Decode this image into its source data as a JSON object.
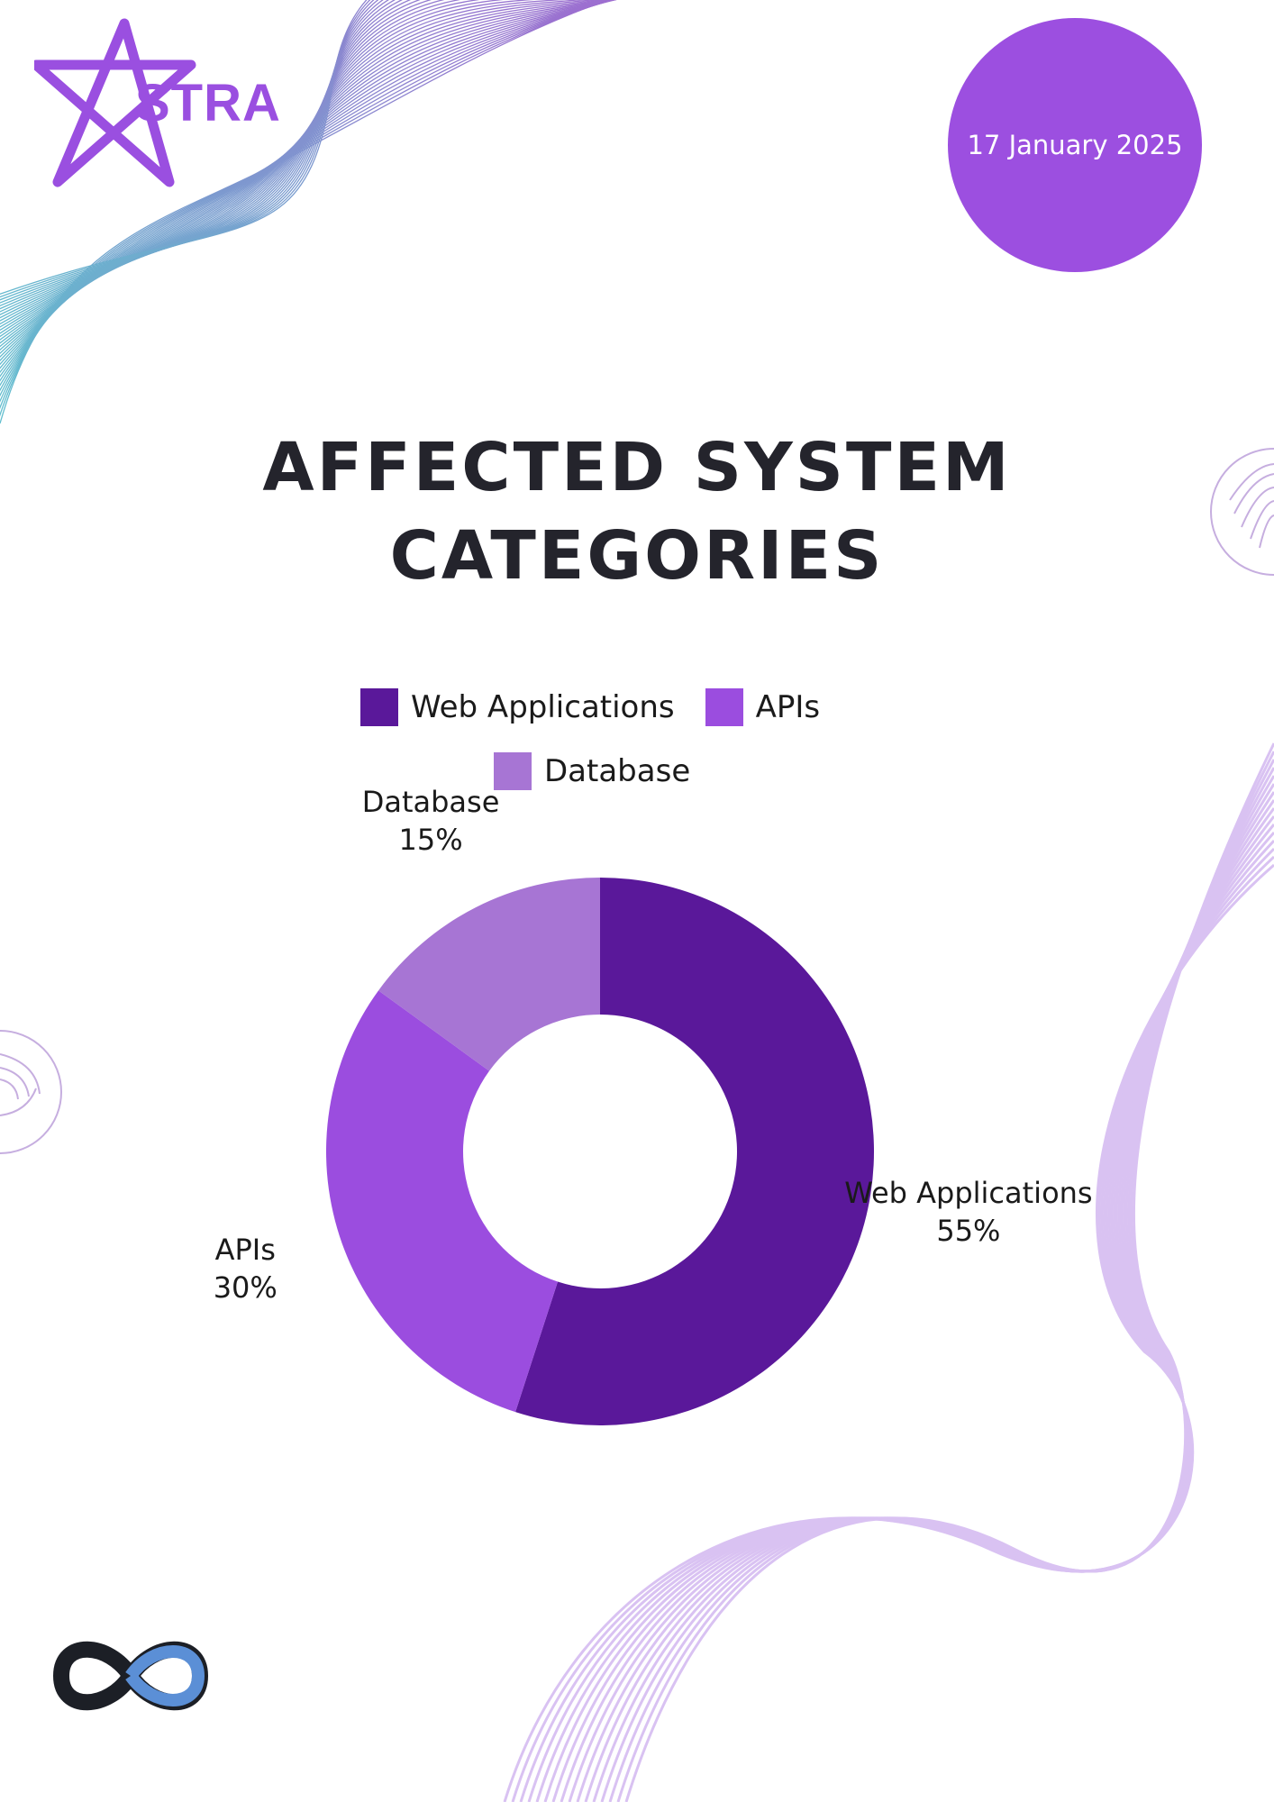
{
  "brand": {
    "name": "STRA",
    "color": "#9a4fe0",
    "icon": "star-icon"
  },
  "date": "17 January 2025",
  "title": {
    "line1": "AFFECTED SYSTEM",
    "line2": "CATEGORIES"
  },
  "colors": {
    "accent": "#9c4fe0",
    "title": "#24242c"
  },
  "chart_data": {
    "type": "pie",
    "variant": "donut",
    "categories": [
      "Web Applications",
      "APIs",
      "Database"
    ],
    "values": [
      55,
      30,
      15
    ],
    "unit": "%",
    "colors": [
      "#5a189a",
      "#9b4ddf",
      "#a775d4"
    ],
    "labels": [
      {
        "name": "Web Applications",
        "value_text": "55%"
      },
      {
        "name": "APIs",
        "value_text": "30%"
      },
      {
        "name": "Database",
        "value_text": "15%"
      }
    ],
    "legend": {
      "placement": "top",
      "entries": [
        "Web Applications",
        "APIs",
        "Database"
      ]
    }
  },
  "footer": {
    "icon": "infinity-logo-icon"
  }
}
